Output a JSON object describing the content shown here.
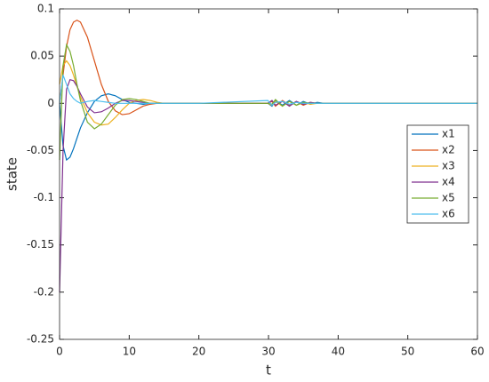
{
  "chart_data": {
    "type": "line",
    "xlabel": "t",
    "ylabel": "state",
    "x": [
      0,
      0.5,
      1,
      1.5,
      2,
      2.5,
      3,
      4,
      5,
      6,
      7,
      8,
      9,
      10,
      11,
      12,
      13,
      14,
      15,
      20,
      29.9,
      30.5,
      31,
      32,
      33,
      34,
      35,
      36,
      37,
      38,
      40,
      45,
      50,
      55,
      60
    ],
    "series": [
      {
        "name": "x1",
        "color": "#0072BD",
        "values": [
          0,
          -0.045,
          -0.06,
          -0.057,
          -0.048,
          -0.037,
          -0.026,
          -0.01,
          0.002,
          0.008,
          0.01,
          0.008,
          0.004,
          0.001,
          0,
          -0.001,
          0,
          0,
          0,
          0,
          0,
          -0.003,
          0.003,
          -0.002,
          0.003,
          -0.002,
          0.002,
          -0.001,
          0.001,
          0,
          0,
          0,
          0,
          0,
          0
        ]
      },
      {
        "name": "x2",
        "color": "#D95319",
        "values": [
          0,
          0.03,
          0.06,
          0.078,
          0.086,
          0.088,
          0.086,
          0.07,
          0.045,
          0.02,
          0.002,
          -0.008,
          -0.012,
          -0.011,
          -0.007,
          -0.003,
          -0.001,
          0,
          0,
          0,
          0,
          0.002,
          -0.003,
          0.003,
          -0.002,
          0.002,
          -0.002,
          0.001,
          0,
          0,
          0,
          0,
          0,
          0,
          0
        ]
      },
      {
        "name": "x3",
        "color": "#EDB120",
        "values": [
          0.02,
          0.04,
          0.045,
          0.04,
          0.03,
          0.018,
          0.007,
          -0.01,
          -0.02,
          -0.023,
          -0.022,
          -0.015,
          -0.007,
          0,
          0.003,
          0.004,
          0.003,
          0.001,
          0,
          0,
          0,
          -0.002,
          0.002,
          -0.003,
          0.002,
          -0.002,
          0.001,
          -0.001,
          0,
          0,
          0,
          0,
          0,
          0,
          0
        ]
      },
      {
        "name": "x4",
        "color": "#7E2F8E",
        "values": [
          -0.2,
          -0.05,
          0.015,
          0.025,
          0.024,
          0.018,
          0.01,
          -0.004,
          -0.01,
          -0.009,
          -0.005,
          0,
          0.003,
          0.003,
          0.002,
          0.001,
          0,
          0,
          0,
          0,
          0,
          0.003,
          -0.002,
          0.002,
          -0.003,
          0.002,
          -0.001,
          0.001,
          0,
          0,
          0,
          0,
          0,
          0,
          0
        ]
      },
      {
        "name": "x5",
        "color": "#77AC30",
        "values": [
          -0.06,
          0.04,
          0.062,
          0.055,
          0.04,
          0.02,
          0.003,
          -0.02,
          -0.027,
          -0.022,
          -0.012,
          -0.002,
          0.004,
          0.005,
          0.004,
          0.002,
          0,
          0,
          0,
          0,
          0,
          -0.001,
          0.004,
          -0.003,
          0.002,
          -0.002,
          0.001,
          0,
          0,
          0,
          0,
          0,
          0,
          0,
          0
        ]
      },
      {
        "name": "x6",
        "color": "#4DBEEE",
        "values": [
          0,
          0.03,
          0.02,
          0.01,
          0.005,
          0.002,
          0,
          0.002,
          0.003,
          0.002,
          0.001,
          0,
          0,
          0,
          0,
          0,
          0,
          0,
          0,
          0,
          0.003,
          -0.002,
          0.001,
          0.002,
          -0.001,
          0.001,
          0,
          0,
          0,
          0,
          0,
          0,
          0,
          0,
          0
        ]
      }
    ],
    "xlim": [
      0,
      60
    ],
    "xticks": [
      0,
      10,
      20,
      30,
      40,
      50,
      60
    ],
    "ylim": [
      -0.25,
      0.1
    ],
    "yticks": [
      -0.25,
      -0.2,
      -0.15,
      -0.1,
      -0.05,
      0,
      0.05,
      0.1
    ],
    "grid": false,
    "legend": "east"
  }
}
